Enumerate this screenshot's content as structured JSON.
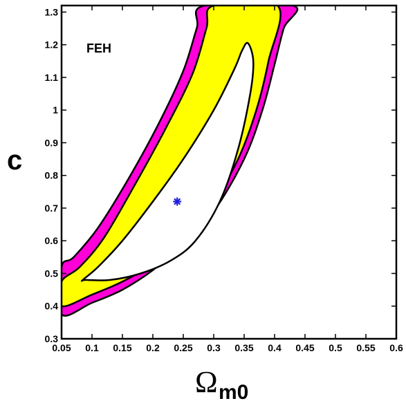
{
  "chart_data": {
    "type": "contour",
    "xlabel_main": "Ω",
    "xlabel_sub": "m0",
    "ylabel": "c",
    "annotation": "FEH",
    "xlim": [
      0.05,
      0.6
    ],
    "ylim": [
      0.3,
      1.32
    ],
    "xticks": [
      "0.05",
      "0.1",
      "0.15",
      "0.2",
      "0.25",
      "0.3",
      "0.35",
      "0.4",
      "0.45",
      "0.5",
      "0.55",
      "0.6"
    ],
    "yticks": [
      "0.3",
      "0.4",
      "0.5",
      "0.6",
      "0.7",
      "0.8",
      "0.9",
      "1",
      "1.1",
      "1.2",
      "1.3"
    ],
    "xtick_values": [
      0.05,
      0.1,
      0.15,
      0.2,
      0.25,
      0.3,
      0.35,
      0.4,
      0.45,
      0.5,
      0.55,
      0.6
    ],
    "ytick_values": [
      0.3,
      0.4,
      0.5,
      0.6,
      0.7,
      0.8,
      0.9,
      1.0,
      1.1,
      1.2,
      1.3
    ],
    "best_fit": {
      "x": 0.24,
      "y": 0.72,
      "marker": "*",
      "color": "#1f1fe0"
    },
    "colors": {
      "outer_band": "#ff00d8",
      "middle_band": "#ffff00",
      "inner": "#ffffff",
      "outline": "#000000"
    },
    "contours": [
      {
        "name": "outer",
        "points": [
          [
            0.05,
            0.375
          ],
          [
            0.1,
            0.41
          ],
          [
            0.15,
            0.45
          ],
          [
            0.2,
            0.51
          ],
          [
            0.25,
            0.59
          ],
          [
            0.3,
            0.69
          ],
          [
            0.35,
            0.85
          ],
          [
            0.38,
            1.0
          ],
          [
            0.4,
            1.14
          ],
          [
            0.415,
            1.25
          ],
          [
            0.43,
            1.32
          ],
          [
            0.285,
            1.32
          ],
          [
            0.272,
            1.25
          ],
          [
            0.25,
            1.12
          ],
          [
            0.21,
            0.96
          ],
          [
            0.16,
            0.79
          ],
          [
            0.11,
            0.64
          ],
          [
            0.07,
            0.55
          ],
          [
            0.05,
            0.52
          ]
        ]
      },
      {
        "name": "middle",
        "points": [
          [
            0.05,
            0.4
          ],
          [
            0.1,
            0.435
          ],
          [
            0.15,
            0.475
          ],
          [
            0.2,
            0.53
          ],
          [
            0.25,
            0.61
          ],
          [
            0.3,
            0.72
          ],
          [
            0.34,
            0.85
          ],
          [
            0.37,
            1.0
          ],
          [
            0.39,
            1.15
          ],
          [
            0.405,
            1.32
          ],
          [
            0.3,
            1.32
          ],
          [
            0.288,
            1.25
          ],
          [
            0.265,
            1.11
          ],
          [
            0.22,
            0.94
          ],
          [
            0.17,
            0.77
          ],
          [
            0.12,
            0.61
          ],
          [
            0.08,
            0.52
          ],
          [
            0.05,
            0.475
          ]
        ]
      },
      {
        "name": "inner",
        "points": [
          [
            0.09,
            0.48
          ],
          [
            0.13,
            0.48
          ],
          [
            0.18,
            0.5
          ],
          [
            0.23,
            0.54
          ],
          [
            0.27,
            0.6
          ],
          [
            0.31,
            0.72
          ],
          [
            0.34,
            0.88
          ],
          [
            0.36,
            1.05
          ],
          [
            0.365,
            1.15
          ],
          [
            0.356,
            1.205
          ],
          [
            0.346,
            1.18
          ],
          [
            0.335,
            1.13
          ],
          [
            0.3,
            1.0
          ],
          [
            0.25,
            0.85
          ],
          [
            0.2,
            0.72
          ],
          [
            0.15,
            0.6
          ],
          [
            0.11,
            0.52
          ],
          [
            0.085,
            0.48
          ]
        ]
      }
    ]
  }
}
